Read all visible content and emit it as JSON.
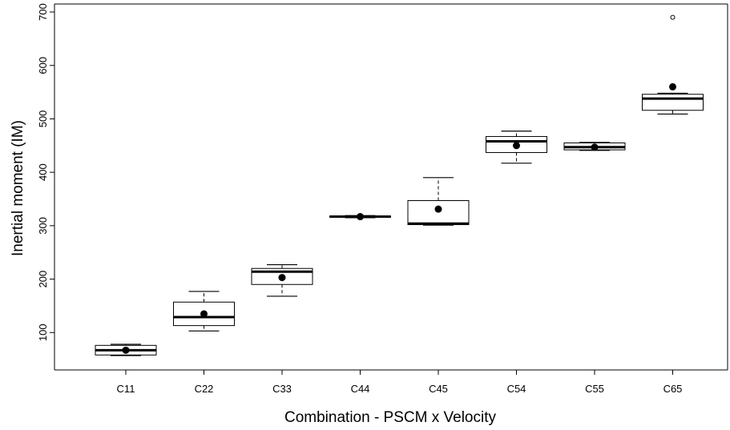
{
  "chart_data": {
    "type": "boxplot",
    "title": "",
    "xlabel": "Combination - PSCM x Velocity",
    "ylabel": "Inertial moment (IM)",
    "ylim": [
      30,
      715
    ],
    "yticks": [
      100,
      200,
      300,
      400,
      500,
      600,
      700
    ],
    "grid": false,
    "legend": "none",
    "categories": [
      "C11",
      "C22",
      "C33",
      "C44",
      "C45",
      "C54",
      "C55",
      "C65"
    ],
    "boxes": [
      {
        "category": "C11",
        "whisker_low": 57,
        "q1": 58,
        "median": 67,
        "q3": 76,
        "whisker_high": 78,
        "mean": 67,
        "outliers": []
      },
      {
        "category": "C22",
        "whisker_low": 103,
        "q1": 113,
        "median": 129,
        "q3": 157,
        "whisker_high": 177,
        "mean": 135,
        "outliers": []
      },
      {
        "category": "C33",
        "whisker_low": 168,
        "q1": 190,
        "median": 214,
        "q3": 220,
        "whisker_high": 227,
        "mean": 203,
        "outliers": []
      },
      {
        "category": "C44",
        "whisker_low": 315,
        "q1": 316,
        "median": 317,
        "q3": 318,
        "whisker_high": 319,
        "mean": 317,
        "outliers": []
      },
      {
        "category": "C45",
        "whisker_low": 301,
        "q1": 302,
        "median": 304,
        "q3": 347,
        "whisker_high": 390,
        "mean": 331,
        "outliers": []
      },
      {
        "category": "C54",
        "whisker_low": 417,
        "q1": 437,
        "median": 458,
        "q3": 467,
        "whisker_high": 477,
        "mean": 450,
        "outliers": []
      },
      {
        "category": "C55",
        "whisker_low": 441,
        "q1": 442,
        "median": 447,
        "q3": 455,
        "whisker_high": 456,
        "mean": 447,
        "outliers": []
      },
      {
        "category": "C65",
        "whisker_low": 509,
        "q1": 516,
        "median": 538,
        "q3": 546,
        "whisker_high": 548,
        "mean": 560,
        "outliers": [
          690
        ]
      }
    ]
  }
}
